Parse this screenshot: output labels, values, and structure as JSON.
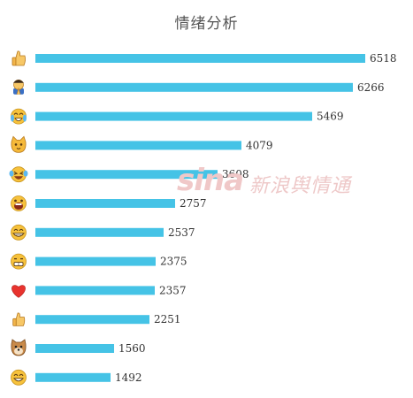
{
  "watermark": {
    "logo": "sina",
    "text": "新浪舆情通"
  },
  "colors": {
    "bar": "#45c3e6",
    "face": "#f7c23c",
    "heart": "#e8332e",
    "doge": "#c98a4a"
  },
  "chart_data": {
    "type": "bar",
    "orientation": "horizontal",
    "title": "情绪分析",
    "categories": [
      "thumbs-up-icon",
      "praying-icon",
      "laugh-cry-icon",
      "doge-cat-icon",
      "tears-of-joy-icon",
      "shocked-face-icon",
      "grin-face-icon",
      "awkward-face-icon",
      "heart-icon",
      "thumbs-up-small-icon",
      "doge-dog-icon",
      "smile-face-icon"
    ],
    "values": [
      6518,
      6266,
      5469,
      4079,
      3608,
      2757,
      2537,
      2375,
      2357,
      2251,
      1560,
      1492
    ],
    "xlim": [
      0,
      6518
    ],
    "grid": false,
    "legend": "none"
  }
}
